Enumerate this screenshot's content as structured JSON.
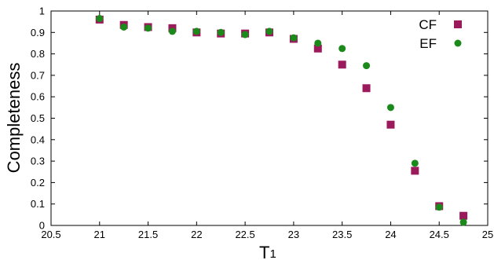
{
  "chart_data": {
    "type": "scatter",
    "title": "",
    "xlabel": "T",
    "xlabel_subscript": "1",
    "ylabel": "Completeness",
    "xlim": [
      20.5,
      25
    ],
    "ylim": [
      0,
      1
    ],
    "xticks": [
      "20.5",
      "21",
      "21.5",
      "22",
      "22.5",
      "23",
      "23.5",
      "24",
      "24.5",
      "25"
    ],
    "yticks": [
      "0",
      "0.1",
      "0.2",
      "0.3",
      "0.4",
      "0.5",
      "0.6",
      "0.7",
      "0.8",
      "0.9",
      "1"
    ],
    "grid": false,
    "legend_position": "top-right",
    "series": [
      {
        "name": "CF",
        "marker": "square",
        "color": "#9b1a5c",
        "x": [
          21.0,
          21.25,
          21.5,
          21.75,
          22.0,
          22.25,
          22.5,
          22.75,
          23.0,
          23.25,
          23.5,
          23.75,
          24.0,
          24.25,
          24.5,
          24.75
        ],
        "y": [
          0.96,
          0.935,
          0.925,
          0.92,
          0.9,
          0.895,
          0.895,
          0.9,
          0.87,
          0.825,
          0.75,
          0.64,
          0.47,
          0.255,
          0.09,
          0.045
        ]
      },
      {
        "name": "EF",
        "marker": "circle",
        "color": "#1a8a1a",
        "x": [
          21.0,
          21.25,
          21.5,
          21.75,
          22.0,
          22.25,
          22.5,
          22.75,
          23.0,
          23.25,
          23.5,
          23.75,
          24.0,
          24.25,
          24.5,
          24.75
        ],
        "y": [
          0.965,
          0.925,
          0.92,
          0.905,
          0.905,
          0.9,
          0.89,
          0.905,
          0.875,
          0.85,
          0.825,
          0.745,
          0.55,
          0.29,
          0.085,
          0.015
        ]
      }
    ]
  }
}
